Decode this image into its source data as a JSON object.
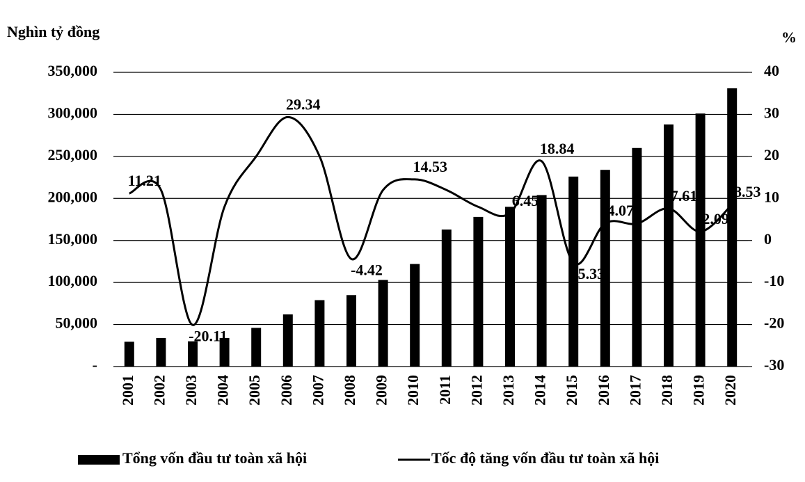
{
  "chart_data": {
    "type": "bar_line",
    "y_label": "Nghìn tỷ đồng",
    "y2_label": "%",
    "categories": [
      "2001",
      "2002",
      "2003",
      "2004",
      "2005",
      "2006",
      "2007",
      "2008",
      "2009",
      "2010",
      "2011",
      "2012",
      "2013",
      "2014",
      "2015",
      "2016",
      "2017",
      "2018",
      "2019",
      "2020"
    ],
    "series": [
      {
        "name": "Tổng vốn đầu tư toàn xã hội",
        "type": "bar",
        "color": "#000000",
        "values": [
          29500,
          34000,
          30000,
          34000,
          46000,
          62000,
          79000,
          85000,
          103000,
          122000,
          163000,
          178000,
          190000,
          204000,
          226000,
          234000,
          260000,
          288000,
          301000,
          331000
        ]
      },
      {
        "name": "Tốc độ tăng vốn đầu tư toàn xã hội",
        "type": "line",
        "axis": "y2",
        "color": "#000000",
        "values": [
          11.21,
          12,
          -20.11,
          8,
          20,
          29.34,
          20,
          -4.42,
          12,
          14.53,
          12,
          8,
          6.45,
          18.84,
          -5.33,
          4.07,
          4,
          7.61,
          2.09,
          8.53
        ],
        "value_labels": [
          "11.21",
          null,
          "-20.11",
          null,
          null,
          "29.34",
          null,
          "-4.42",
          null,
          "14.53",
          null,
          null,
          "6.45",
          "18.84",
          "-5.33",
          "4.07",
          null,
          "7.61",
          "2.09",
          "8.53"
        ]
      }
    ],
    "ylim": [
      0,
      350000
    ],
    "yticks": [
      {
        "value": 0,
        "label": "-"
      },
      {
        "value": 50000,
        "label": "50,000"
      },
      {
        "value": 100000,
        "label": "100,000"
      },
      {
        "value": 150000,
        "label": "150,000"
      },
      {
        "value": 200000,
        "label": "200,000"
      },
      {
        "value": 250000,
        "label": "250,000"
      },
      {
        "value": 300000,
        "label": "300,000"
      },
      {
        "value": 350000,
        "label": "350,000"
      }
    ],
    "y2lim": [
      -30,
      40
    ],
    "y2ticks": [
      -30,
      -20,
      -10,
      0,
      10,
      20,
      30,
      40
    ],
    "grid": true,
    "legend": "bottom"
  }
}
